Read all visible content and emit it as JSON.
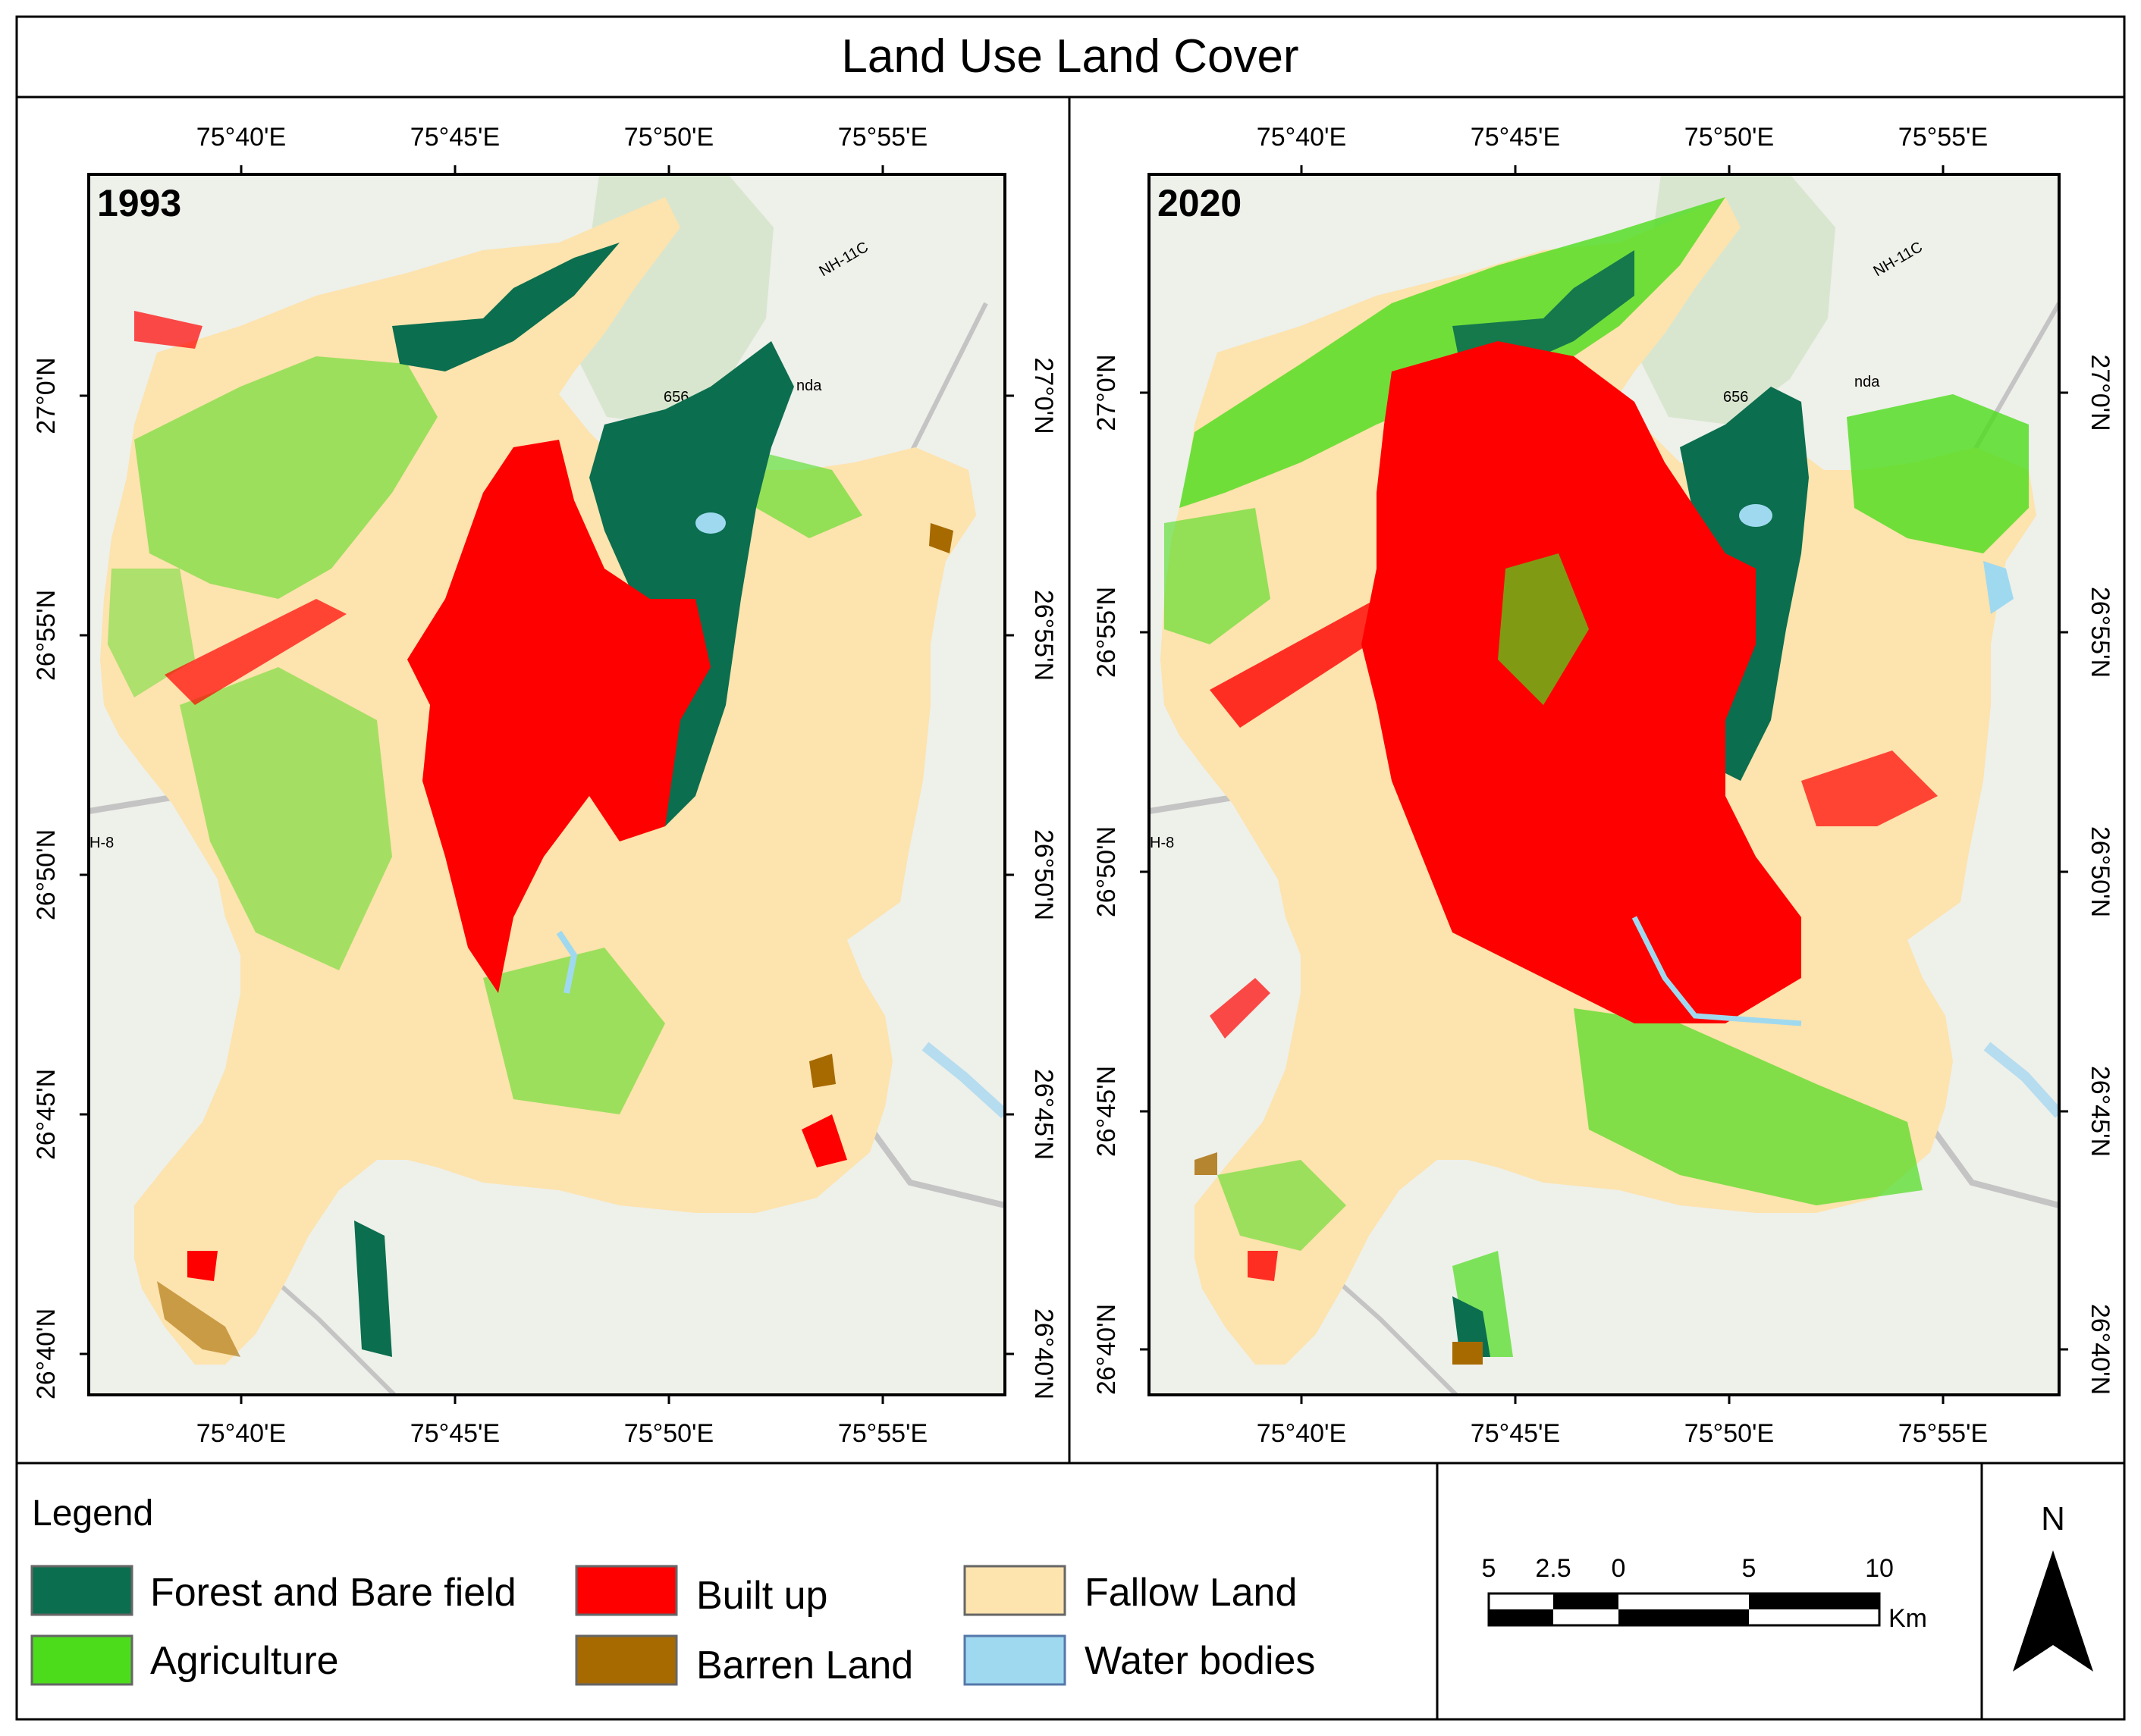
{
  "title": "Land Use Land Cover",
  "maps": [
    {
      "year": "1993",
      "top_ticks": [
        "75°40'E",
        "75°45'E",
        "75°50'E",
        "75°55'E"
      ],
      "bottom_ticks": [
        "75°40'E",
        "75°45'E",
        "75°50'E",
        "75°55'E"
      ],
      "left_ticks": [
        "27°0'N",
        "26°55'N",
        "26°50'N",
        "26°45'N",
        "26°40'N"
      ],
      "right_ticks": [
        "27°0'N",
        "26°55'N",
        "26°50'N",
        "26°45'N",
        "26°40'N"
      ],
      "basemap_labels": [
        "NH-11C",
        "656",
        "nda",
        "H-8"
      ]
    },
    {
      "year": "2020",
      "top_ticks": [
        "75°40'E",
        "75°45'E",
        "75°50'E",
        "75°55'E"
      ],
      "bottom_ticks": [
        "75°40'E",
        "75°45'E",
        "75°50'E",
        "75°55'E"
      ],
      "left_ticks": [
        "27°0'N",
        "26°55'N",
        "26°50'N",
        "26°45'N",
        "26°40'N"
      ],
      "right_ticks": [
        "27°0'N",
        "26°55'N",
        "26°50'N",
        "26°45'N",
        "26°40'N"
      ],
      "basemap_labels": [
        "NH-11C",
        "656",
        "nda",
        "H-8"
      ]
    }
  ],
  "legend": {
    "heading": "Legend",
    "items": [
      {
        "label": "Forest and Bare field",
        "color": "#0b6e4f"
      },
      {
        "label": "Agriculture",
        "color": "#4cdc1c"
      },
      {
        "label": "Built up",
        "color": "#ff0000"
      },
      {
        "label": "Barren Land",
        "color": "#a66a00"
      },
      {
        "label": "Fallow Land",
        "color": "#fde3ad"
      },
      {
        "label": "Water bodies",
        "color": "#9fd9f0"
      }
    ]
  },
  "scale_bar": {
    "labels": [
      "5",
      "2.5",
      "0",
      "5",
      "10"
    ],
    "unit": "Km"
  },
  "north_arrow": {
    "label": "N"
  },
  "colors": {
    "year_label": "#e00000",
    "basemap": "#eef0ea",
    "terrain": "#d9e6cf",
    "road": "#c4c4c4",
    "water": "#b5dcef"
  }
}
